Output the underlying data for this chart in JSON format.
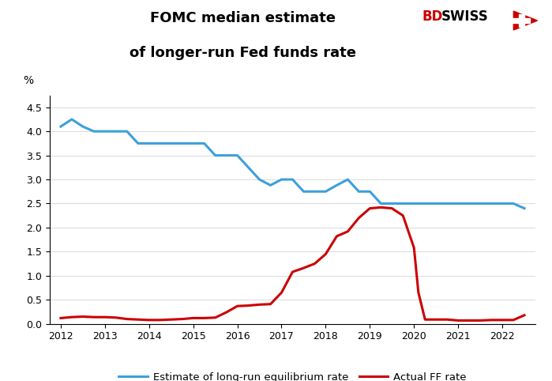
{
  "title_line1": "FOMC median estimate",
  "title_line2": "of longer-run Fed funds rate",
  "ylabel": "%",
  "ylim": [
    0.0,
    4.75
  ],
  "yticks": [
    0.0,
    0.5,
    1.0,
    1.5,
    2.0,
    2.5,
    3.0,
    3.5,
    4.0,
    4.5
  ],
  "background_color": "#ffffff",
  "blue_color": "#3d9fdb",
  "red_color": "#cc0000",
  "logo_bd_color": "#cc0000",
  "logo_swiss_color": "#000000",
  "legend_label_blue": "Estimate of long-run equilibrium rate",
  "legend_label_red": "Actual FF rate",
  "blue_x": [
    2012.0,
    2012.25,
    2012.5,
    2012.75,
    2013.0,
    2013.25,
    2013.5,
    2013.75,
    2014.0,
    2014.25,
    2014.5,
    2014.75,
    2015.0,
    2015.25,
    2015.5,
    2015.75,
    2016.0,
    2016.25,
    2016.5,
    2016.75,
    2017.0,
    2017.25,
    2017.5,
    2017.75,
    2018.0,
    2018.25,
    2018.5,
    2018.75,
    2019.0,
    2019.25,
    2019.5,
    2019.75,
    2020.0,
    2020.25,
    2020.5,
    2020.75,
    2021.0,
    2021.25,
    2021.5,
    2021.75,
    2022.0,
    2022.25,
    2022.5
  ],
  "blue_y": [
    4.1,
    4.25,
    4.1,
    4.0,
    4.0,
    4.0,
    4.0,
    3.75,
    3.75,
    3.75,
    3.75,
    3.75,
    3.75,
    3.75,
    3.5,
    3.5,
    3.5,
    3.25,
    3.0,
    2.88,
    3.0,
    3.0,
    2.75,
    2.75,
    2.75,
    2.88,
    3.0,
    2.75,
    2.75,
    2.5,
    2.5,
    2.5,
    2.5,
    2.5,
    2.5,
    2.5,
    2.5,
    2.5,
    2.5,
    2.5,
    2.5,
    2.5,
    2.4
  ],
  "red_x": [
    2012.0,
    2012.25,
    2012.5,
    2012.75,
    2013.0,
    2013.25,
    2013.5,
    2013.75,
    2014.0,
    2014.25,
    2014.5,
    2014.75,
    2015.0,
    2015.25,
    2015.5,
    2015.75,
    2016.0,
    2016.25,
    2016.5,
    2016.75,
    2017.0,
    2017.25,
    2017.5,
    2017.75,
    2018.0,
    2018.25,
    2018.5,
    2018.75,
    2019.0,
    2019.25,
    2019.5,
    2019.75,
    2020.0,
    2020.1,
    2020.25,
    2020.5,
    2020.75,
    2021.0,
    2021.25,
    2021.5,
    2021.75,
    2022.0,
    2022.25,
    2022.5
  ],
  "red_y": [
    0.12,
    0.14,
    0.15,
    0.14,
    0.14,
    0.13,
    0.1,
    0.09,
    0.08,
    0.08,
    0.09,
    0.1,
    0.12,
    0.12,
    0.13,
    0.24,
    0.37,
    0.38,
    0.4,
    0.41,
    0.65,
    1.08,
    1.16,
    1.25,
    1.45,
    1.82,
    1.92,
    2.2,
    2.4,
    2.42,
    2.4,
    2.25,
    1.58,
    0.65,
    0.09,
    0.09,
    0.09,
    0.07,
    0.07,
    0.07,
    0.08,
    0.08,
    0.08,
    0.18
  ]
}
